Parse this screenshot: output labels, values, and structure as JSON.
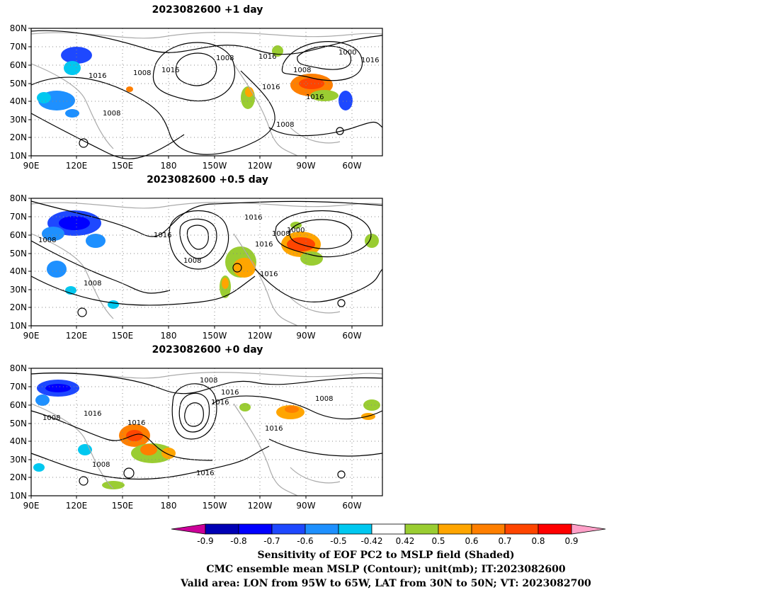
{
  "panels": [
    {
      "title": "2023082600 +1 day",
      "contour_labels": [
        "1008",
        "1016",
        "1008",
        "1016",
        "1008",
        "1016",
        "1016",
        "1008",
        "1016",
        "1008",
        "1000",
        "1016"
      ]
    },
    {
      "title": "2023082600 +0.5 day",
      "contour_labels": [
        "1008",
        "1008",
        "1016",
        "1008",
        "1016",
        "1016",
        "1016",
        "1008",
        "1000",
        "1008"
      ]
    },
    {
      "title": "2023082600 +0 day",
      "contour_labels": [
        "1008",
        "1016",
        "1008",
        "1008",
        "1016",
        "1016",
        "1016",
        "1016",
        "1008",
        "1016"
      ]
    }
  ],
  "lat_ticks": [
    "80N",
    "70N",
    "60N",
    "50N",
    "40N",
    "30N",
    "20N",
    "10N"
  ],
  "lon_ticks": [
    "90E",
    "120E",
    "150E",
    "180",
    "150W",
    "120W",
    "90W",
    "60W"
  ],
  "colorbar": {
    "colors": [
      "#cc0099",
      "#0000b4",
      "#0000ff",
      "#1e48ff",
      "#1e90ff",
      "#00c8f0",
      "#ffffff",
      "#9acd32",
      "#ffa500",
      "#ff7f00",
      "#ff4500",
      "#ff0000",
      "#ffa0c8"
    ],
    "labels": [
      "-0.9",
      "-0.8",
      "-0.7",
      "-0.6",
      "-0.5",
      "-0.42",
      "0.42",
      "0.5",
      "0.6",
      "0.7",
      "0.8",
      "0.9"
    ]
  },
  "caption": {
    "line1": "Sensitivity of EOF PC2 to MSLP field (Shaded)",
    "line2": "CMC ensemble mean MSLP (Contour); unit(mb); IT:2023082600",
    "line3": "Valid area: LON from 95W to 65W, LAT from 30N to 50N; VT: 2023082700"
  }
}
